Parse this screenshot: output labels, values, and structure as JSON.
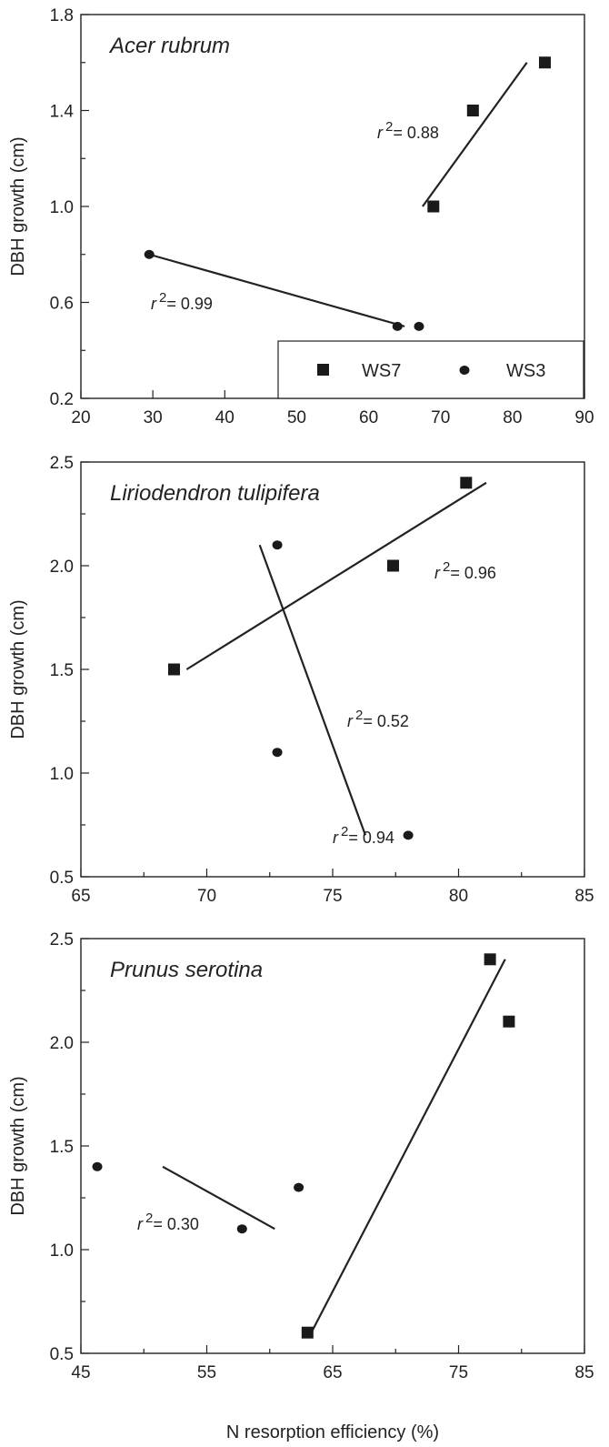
{
  "chart_data": [
    {
      "type": "scatter",
      "title": "Acer rubrum",
      "ylabel": "DBH growth (cm)",
      "xlabel": "",
      "xlim": [
        20,
        90
      ],
      "ylim": [
        0.2,
        1.8
      ],
      "xticks": [
        "20",
        "30",
        "40",
        "50",
        "60",
        "70",
        "80",
        "90"
      ],
      "yticks": [
        "0.2",
        "0.6",
        "1.0",
        "1.4",
        "1.8"
      ],
      "legend": {
        "position": "bottom-right",
        "entries": [
          {
            "label": "WS7",
            "marker": "square"
          },
          {
            "label": "WS3",
            "marker": "circle"
          }
        ]
      },
      "series": [
        {
          "name": "WS7",
          "marker": "square",
          "points": [
            [
              69,
              1.0
            ],
            [
              74.5,
              1.4
            ],
            [
              84.5,
              1.6
            ]
          ],
          "fit": {
            "x": [
              67.5,
              82
            ],
            "y": [
              1.0,
              1.6
            ],
            "r2_prefix": "r",
            "r2_text": "= 0.88"
          }
        },
        {
          "name": "WS3",
          "marker": "circle",
          "points": [
            [
              29.5,
              0.8
            ],
            [
              64,
              0.5
            ],
            [
              67,
              0.5
            ]
          ],
          "fit": {
            "x": [
              29.5,
              65
            ],
            "y": [
              0.8,
              0.5
            ],
            "r2_prefix": "r",
            "r2_text": "= 0.99"
          }
        }
      ]
    },
    {
      "type": "scatter",
      "title": "Liriodendron tulipifera",
      "ylabel": "DBH growth (cm)",
      "xlabel": "",
      "xlim": [
        65,
        85
      ],
      "ylim": [
        0.5,
        2.5
      ],
      "xticks": [
        "65",
        "70",
        "75",
        "80",
        "85"
      ],
      "yticks": [
        "0.5",
        "1.0",
        "1.5",
        "2.0",
        "2.5"
      ],
      "series": [
        {
          "name": "WS7",
          "marker": "square",
          "points": [
            [
              68.7,
              1.5
            ],
            [
              77.4,
              2.0
            ],
            [
              80.3,
              2.4
            ]
          ],
          "fit": {
            "x": [
              69.2,
              81.1
            ],
            "y": [
              1.5,
              2.4
            ],
            "r2_prefix": "r",
            "r2_text": "= 0.96"
          }
        },
        {
          "name": "WS3",
          "marker": "circle",
          "points": [
            [
              72.8,
              2.1
            ],
            [
              72.8,
              1.1
            ],
            [
              78,
              0.7
            ]
          ],
          "fit": {
            "x": [
              72.1,
              76.3
            ],
            "y": [
              2.1,
              0.7
            ],
            "r2_prefix": "r",
            "r2_text": "= 0.52"
          }
        }
      ]
    },
    {
      "type": "scatter",
      "title": "Prunus serotina",
      "ylabel": "DBH growth (cm)",
      "xlabel": "N resorption efficiency (%)",
      "xlim": [
        45,
        85
      ],
      "ylim": [
        0.5,
        2.5
      ],
      "xticks": [
        "45",
        "55",
        "65",
        "75",
        "85"
      ],
      "yticks": [
        "0.5",
        "1.0",
        "1.5",
        "2.0",
        "2.5"
      ],
      "series": [
        {
          "name": "WS7",
          "marker": "square",
          "points": [
            [
              63,
              0.6
            ],
            [
              77.5,
              2.4
            ],
            [
              79,
              2.1
            ]
          ],
          "fit": {
            "x": [
              63.3,
              78.7
            ],
            "y": [
              0.6,
              2.4
            ],
            "r2_prefix": "r",
            "r2_text": "= 0.94"
          }
        },
        {
          "name": "WS3",
          "marker": "circle",
          "points": [
            [
              46.3,
              1.4
            ],
            [
              57.8,
              1.1
            ],
            [
              62.3,
              1.3
            ]
          ],
          "fit": {
            "x": [
              51.5,
              60.4
            ],
            "y": [
              1.4,
              1.1
            ],
            "r2_prefix": "r",
            "r2_text": "= 0.30"
          }
        }
      ]
    }
  ],
  "legend_text": {
    "ws7": "WS7",
    "ws3": "WS3"
  },
  "r2_superscript": "2"
}
